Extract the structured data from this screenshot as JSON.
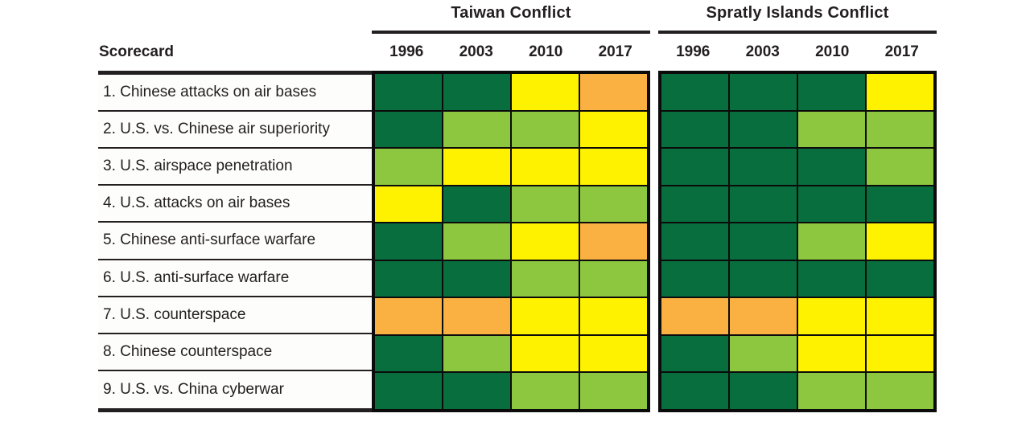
{
  "colors": {
    "dark_green": "#086e3e",
    "light_green": "#8dc63f",
    "yellow": "#fff200",
    "orange": "#fbb042",
    "grid_line": "#0b0b0b",
    "text": "#231f20"
  },
  "header": {
    "scorecard_label": "Scorecard",
    "groups": [
      {
        "title": "Taiwan Conflict",
        "years": [
          "1996",
          "2003",
          "2010",
          "2017"
        ]
      },
      {
        "title": "Spratly Islands Conflict",
        "years": [
          "1996",
          "2003",
          "2010",
          "2017"
        ]
      }
    ]
  },
  "rows": [
    {
      "label": "1. Chinese attacks on air bases",
      "taiwan": [
        "dark_green",
        "dark_green",
        "yellow",
        "orange"
      ],
      "spratly": [
        "dark_green",
        "dark_green",
        "dark_green",
        "yellow"
      ]
    },
    {
      "label": "2. U.S. vs. Chinese air superiority",
      "taiwan": [
        "dark_green",
        "light_green",
        "light_green",
        "yellow"
      ],
      "spratly": [
        "dark_green",
        "dark_green",
        "light_green",
        "light_green"
      ]
    },
    {
      "label": "3. U.S. airspace penetration",
      "taiwan": [
        "light_green",
        "yellow",
        "yellow",
        "yellow"
      ],
      "spratly": [
        "dark_green",
        "dark_green",
        "dark_green",
        "light_green"
      ]
    },
    {
      "label": "4. U.S. attacks on air bases",
      "taiwan": [
        "yellow",
        "dark_green",
        "light_green",
        "light_green"
      ],
      "spratly": [
        "dark_green",
        "dark_green",
        "dark_green",
        "dark_green"
      ]
    },
    {
      "label": "5. Chinese anti-surface warfare",
      "taiwan": [
        "dark_green",
        "light_green",
        "yellow",
        "orange"
      ],
      "spratly": [
        "dark_green",
        "dark_green",
        "light_green",
        "yellow"
      ]
    },
    {
      "label": "6. U.S. anti-surface warfare",
      "taiwan": [
        "dark_green",
        "dark_green",
        "light_green",
        "light_green"
      ],
      "spratly": [
        "dark_green",
        "dark_green",
        "dark_green",
        "dark_green"
      ]
    },
    {
      "label": "7. U.S. counterspace",
      "taiwan": [
        "orange",
        "orange",
        "yellow",
        "yellow"
      ],
      "spratly": [
        "orange",
        "orange",
        "yellow",
        "yellow"
      ]
    },
    {
      "label": "8. Chinese counterspace",
      "taiwan": [
        "dark_green",
        "light_green",
        "yellow",
        "yellow"
      ],
      "spratly": [
        "dark_green",
        "light_green",
        "yellow",
        "yellow"
      ]
    },
    {
      "label": "9. U.S. vs. China cyberwar",
      "taiwan": [
        "dark_green",
        "dark_green",
        "light_green",
        "light_green"
      ],
      "spratly": [
        "dark_green",
        "dark_green",
        "light_green",
        "light_green"
      ]
    }
  ],
  "chart_data": {
    "type": "heatmap",
    "title": "",
    "column_groups": [
      "Taiwan Conflict",
      "Spratly Islands Conflict"
    ],
    "columns": [
      "1996",
      "2003",
      "2010",
      "2017"
    ],
    "row_labels": [
      "1. Chinese attacks on air bases",
      "2. U.S. vs. Chinese air superiority",
      "3. U.S. airspace penetration",
      "4. U.S. attacks on air bases",
      "5. Chinese anti-surface warfare",
      "6. U.S. anti-surface warfare",
      "7. U.S. counterspace",
      "8. Chinese counterspace",
      "9. U.S. vs. China cyberwar"
    ],
    "values": {
      "taiwan": [
        [
          "dark_green",
          "dark_green",
          "yellow",
          "orange"
        ],
        [
          "dark_green",
          "light_green",
          "light_green",
          "yellow"
        ],
        [
          "light_green",
          "yellow",
          "yellow",
          "yellow"
        ],
        [
          "yellow",
          "dark_green",
          "light_green",
          "light_green"
        ],
        [
          "dark_green",
          "light_green",
          "yellow",
          "orange"
        ],
        [
          "dark_green",
          "dark_green",
          "light_green",
          "light_green"
        ],
        [
          "orange",
          "orange",
          "yellow",
          "yellow"
        ],
        [
          "dark_green",
          "light_green",
          "yellow",
          "yellow"
        ],
        [
          "dark_green",
          "dark_green",
          "light_green",
          "light_green"
        ]
      ],
      "spratly": [
        [
          "dark_green",
          "dark_green",
          "dark_green",
          "yellow"
        ],
        [
          "dark_green",
          "dark_green",
          "light_green",
          "light_green"
        ],
        [
          "dark_green",
          "dark_green",
          "dark_green",
          "light_green"
        ],
        [
          "dark_green",
          "dark_green",
          "dark_green",
          "dark_green"
        ],
        [
          "dark_green",
          "dark_green",
          "light_green",
          "yellow"
        ],
        [
          "dark_green",
          "dark_green",
          "dark_green",
          "dark_green"
        ],
        [
          "orange",
          "orange",
          "yellow",
          "yellow"
        ],
        [
          "dark_green",
          "light_green",
          "yellow",
          "yellow"
        ],
        [
          "dark_green",
          "dark_green",
          "light_green",
          "light_green"
        ]
      ]
    },
    "color_scale": {
      "dark_green": "#086e3e",
      "light_green": "#8dc63f",
      "yellow": "#fff200",
      "orange": "#fbb042"
    },
    "layout": {
      "grid": "on",
      "legend": "none",
      "group_header_rule": true
    }
  }
}
